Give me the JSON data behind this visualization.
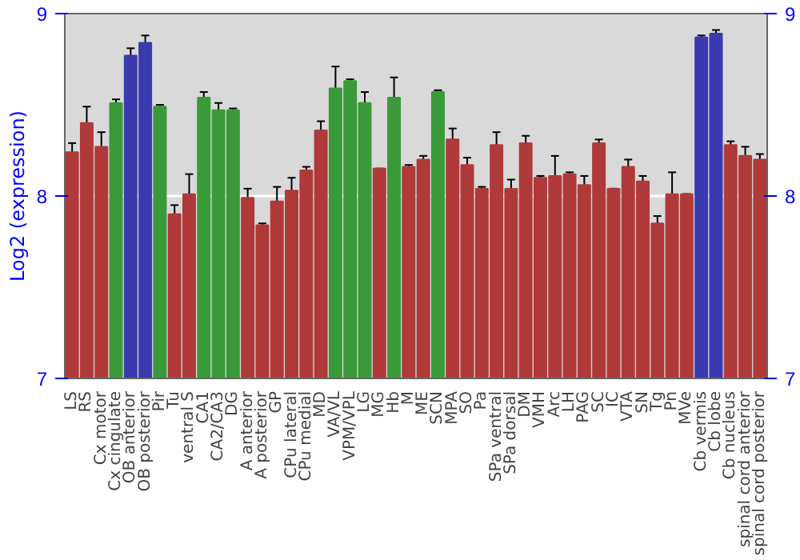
{
  "chart_data": {
    "type": "bar",
    "ylabel": "Log2 (expression)",
    "categories": [
      "LS",
      "RS",
      "Cx motor",
      "Cx cingulate",
      "OB anterior",
      "OB posterior",
      "Pir",
      "Tu",
      "ventral S",
      "CA1",
      "CA2/CA3",
      "DG",
      "A anterior",
      "A posterior",
      "GP",
      "CPu lateral",
      "CPu medial",
      "MD",
      "VA/VL",
      "VPM/VPL",
      "LG",
      "MG",
      "Hb",
      "M",
      "ME",
      "SCN",
      "MPA",
      "SO",
      "Pa",
      "SPa ventral",
      "SPa dorsal",
      "DM",
      "VMH",
      "Arc",
      "LH",
      "PAG",
      "SC",
      "IC",
      "VTA",
      "SN",
      "Tg",
      "Pn",
      "MVe",
      "Cb vermis",
      "Cb lobe",
      "Cb nucleus",
      "spinal cord anterior",
      "spinal cord posterior"
    ],
    "values": [
      8.24,
      8.4,
      8.27,
      8.51,
      8.77,
      8.84,
      8.49,
      7.9,
      8.01,
      8.54,
      8.47,
      8.47,
      7.99,
      7.84,
      7.97,
      8.03,
      8.14,
      8.36,
      8.59,
      8.63,
      8.51,
      8.15,
      8.54,
      8.16,
      8.2,
      8.57,
      8.31,
      8.17,
      8.04,
      8.28,
      8.04,
      8.29,
      8.1,
      8.11,
      8.12,
      8.06,
      8.29,
      8.04,
      8.16,
      8.08,
      7.85,
      8.01,
      8.01,
      8.87,
      8.89,
      8.28,
      8.22,
      8.2
    ],
    "errors": [
      0.05,
      0.09,
      0.08,
      0.02,
      0.04,
      0.04,
      0.01,
      0.05,
      0.11,
      0.03,
      0.04,
      0.01,
      0.05,
      0.01,
      0.08,
      0.07,
      0.02,
      0.05,
      0.12,
      0.01,
      0.06,
      0.0,
      0.11,
      0.01,
      0.02,
      0.01,
      0.06,
      0.04,
      0.01,
      0.07,
      0.05,
      0.04,
      0.01,
      0.11,
      0.01,
      0.05,
      0.02,
      0.0,
      0.04,
      0.03,
      0.04,
      0.12,
      0.0,
      0.01,
      0.02,
      0.02,
      0.05,
      0.03
    ],
    "colors": [
      "#b03a3a",
      "#b03a3a",
      "#b03a3a",
      "#3a9a3a",
      "#3a3ab0",
      "#3a3ab0",
      "#3a9a3a",
      "#b03a3a",
      "#b03a3a",
      "#3a9a3a",
      "#3a9a3a",
      "#3a9a3a",
      "#b03a3a",
      "#b03a3a",
      "#b03a3a",
      "#b03a3a",
      "#b03a3a",
      "#b03a3a",
      "#3a9a3a",
      "#3a9a3a",
      "#3a9a3a",
      "#b03a3a",
      "#3a9a3a",
      "#b03a3a",
      "#b03a3a",
      "#3a9a3a",
      "#b03a3a",
      "#b03a3a",
      "#b03a3a",
      "#b03a3a",
      "#b03a3a",
      "#b03a3a",
      "#b03a3a",
      "#b03a3a",
      "#b03a3a",
      "#b03a3a",
      "#b03a3a",
      "#b03a3a",
      "#b03a3a",
      "#b03a3a",
      "#b03a3a",
      "#b03a3a",
      "#b03a3a",
      "#3a3ab0",
      "#3a3ab0",
      "#b03a3a",
      "#b03a3a",
      "#b03a3a"
    ],
    "ylim": [
      7,
      9
    ],
    "yticks": [
      7,
      8,
      9
    ],
    "y2lim": [
      7,
      9
    ],
    "y2ticks": [
      7,
      8,
      9
    ],
    "grid": "y"
  }
}
